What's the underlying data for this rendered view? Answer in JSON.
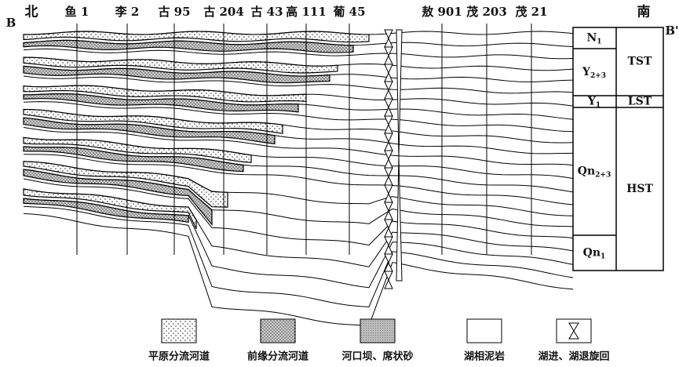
{
  "header": {
    "north": "北",
    "south": "南",
    "section_start": "B",
    "section_end": "B'"
  },
  "wells": [
    "鱼 1",
    "李 2",
    "古 95",
    "古 204",
    "古 43",
    "高 111",
    "葡 45",
    "敖 901",
    "茂 203",
    "茂 21"
  ],
  "stratigraphy": {
    "units": [
      {
        "name": "N",
        "sub": "1"
      },
      {
        "name": "Y",
        "sub": "2+3"
      },
      {
        "name": "Y",
        "sub": "1"
      },
      {
        "name": "Qn",
        "sub": "2+3"
      },
      {
        "name": "Qn",
        "sub": "1"
      }
    ],
    "tracts": [
      "TST",
      "LST",
      "HST"
    ]
  },
  "legend": [
    "平原分流河道",
    "前缘分流河道",
    "河口坝、席状砂",
    "湖相泥岩",
    "湖进、湖退旋回"
  ]
}
